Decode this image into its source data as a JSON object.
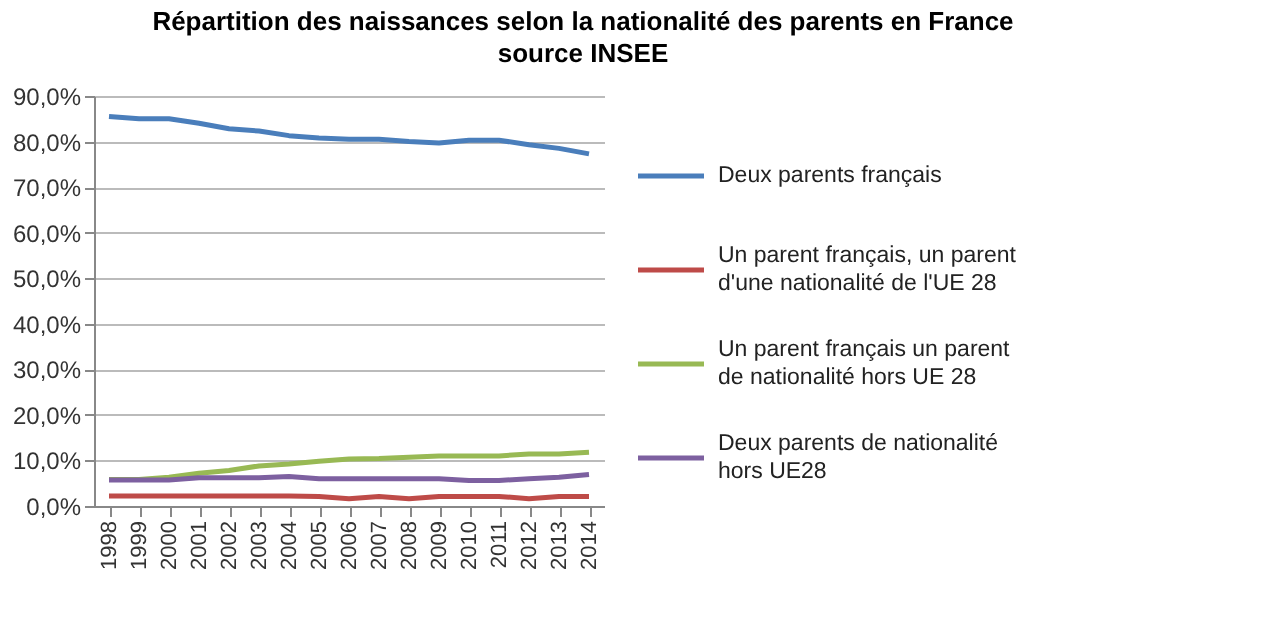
{
  "chart_data": {
    "type": "line",
    "title": "Répartition des naissances selon la nationalité des parents en France",
    "subtitle": "source INSEE",
    "categories": [
      "1998",
      "1999",
      "2000",
      "2001",
      "2002",
      "2003",
      "2004",
      "2005",
      "2006",
      "2007",
      "2008",
      "2009",
      "2010",
      "2011",
      "2012",
      "2013",
      "2014"
    ],
    "series": [
      {
        "name": "Deux parents français",
        "color": "#4a7ebb",
        "values": [
          85.5,
          85,
          85,
          84,
          82.8,
          82.3,
          81.3,
          80.8,
          80.5,
          80.5,
          80,
          79.7,
          80.3,
          80.3,
          79.3,
          78.5,
          77.3
        ]
      },
      {
        "name": "Un parent français, un parent d'une nationalité  de l'UE 28",
        "color": "#be4b48",
        "values": [
          2.2,
          2.2,
          2.2,
          2.2,
          2.2,
          2.2,
          2.2,
          2.1,
          1.6,
          2.1,
          1.6,
          2.1,
          2.1,
          2.1,
          1.6,
          2.1,
          2.1
        ]
      },
      {
        "name": "Un parent français un parent de nationalité  hors UE 28",
        "color": "#98b954",
        "values": [
          5.8,
          5.8,
          6.3,
          7.2,
          7.8,
          8.8,
          9.2,
          9.8,
          10.3,
          10.4,
          10.7,
          11,
          11,
          11,
          11.4,
          11.4,
          11.8
        ]
      },
      {
        "name": "Deux parents de nationalité hors UE28",
        "color": "#7d60a0",
        "values": [
          5.7,
          5.7,
          5.7,
          6.2,
          6.2,
          6.2,
          6.5,
          6,
          6,
          6,
          6,
          6,
          5.6,
          5.6,
          6,
          6.3,
          6.9
        ]
      }
    ],
    "ylim": [
      0,
      90
    ],
    "yticks": [
      {
        "value": 0,
        "label": "0,0%"
      },
      {
        "value": 10,
        "label": "10,0%"
      },
      {
        "value": 20,
        "label": "20,0%"
      },
      {
        "value": 30,
        "label": "30,0%"
      },
      {
        "value": 40,
        "label": "40,0%"
      },
      {
        "value": 50,
        "label": "50,0%"
      },
      {
        "value": 60,
        "label": "60,0%"
      },
      {
        "value": 70,
        "label": "70,0%"
      },
      {
        "value": 80,
        "label": "80,0%"
      },
      {
        "value": 90,
        "label": "90,0%"
      }
    ],
    "grid": "y",
    "legend": "right",
    "marker": "none",
    "line_style": "solid"
  }
}
